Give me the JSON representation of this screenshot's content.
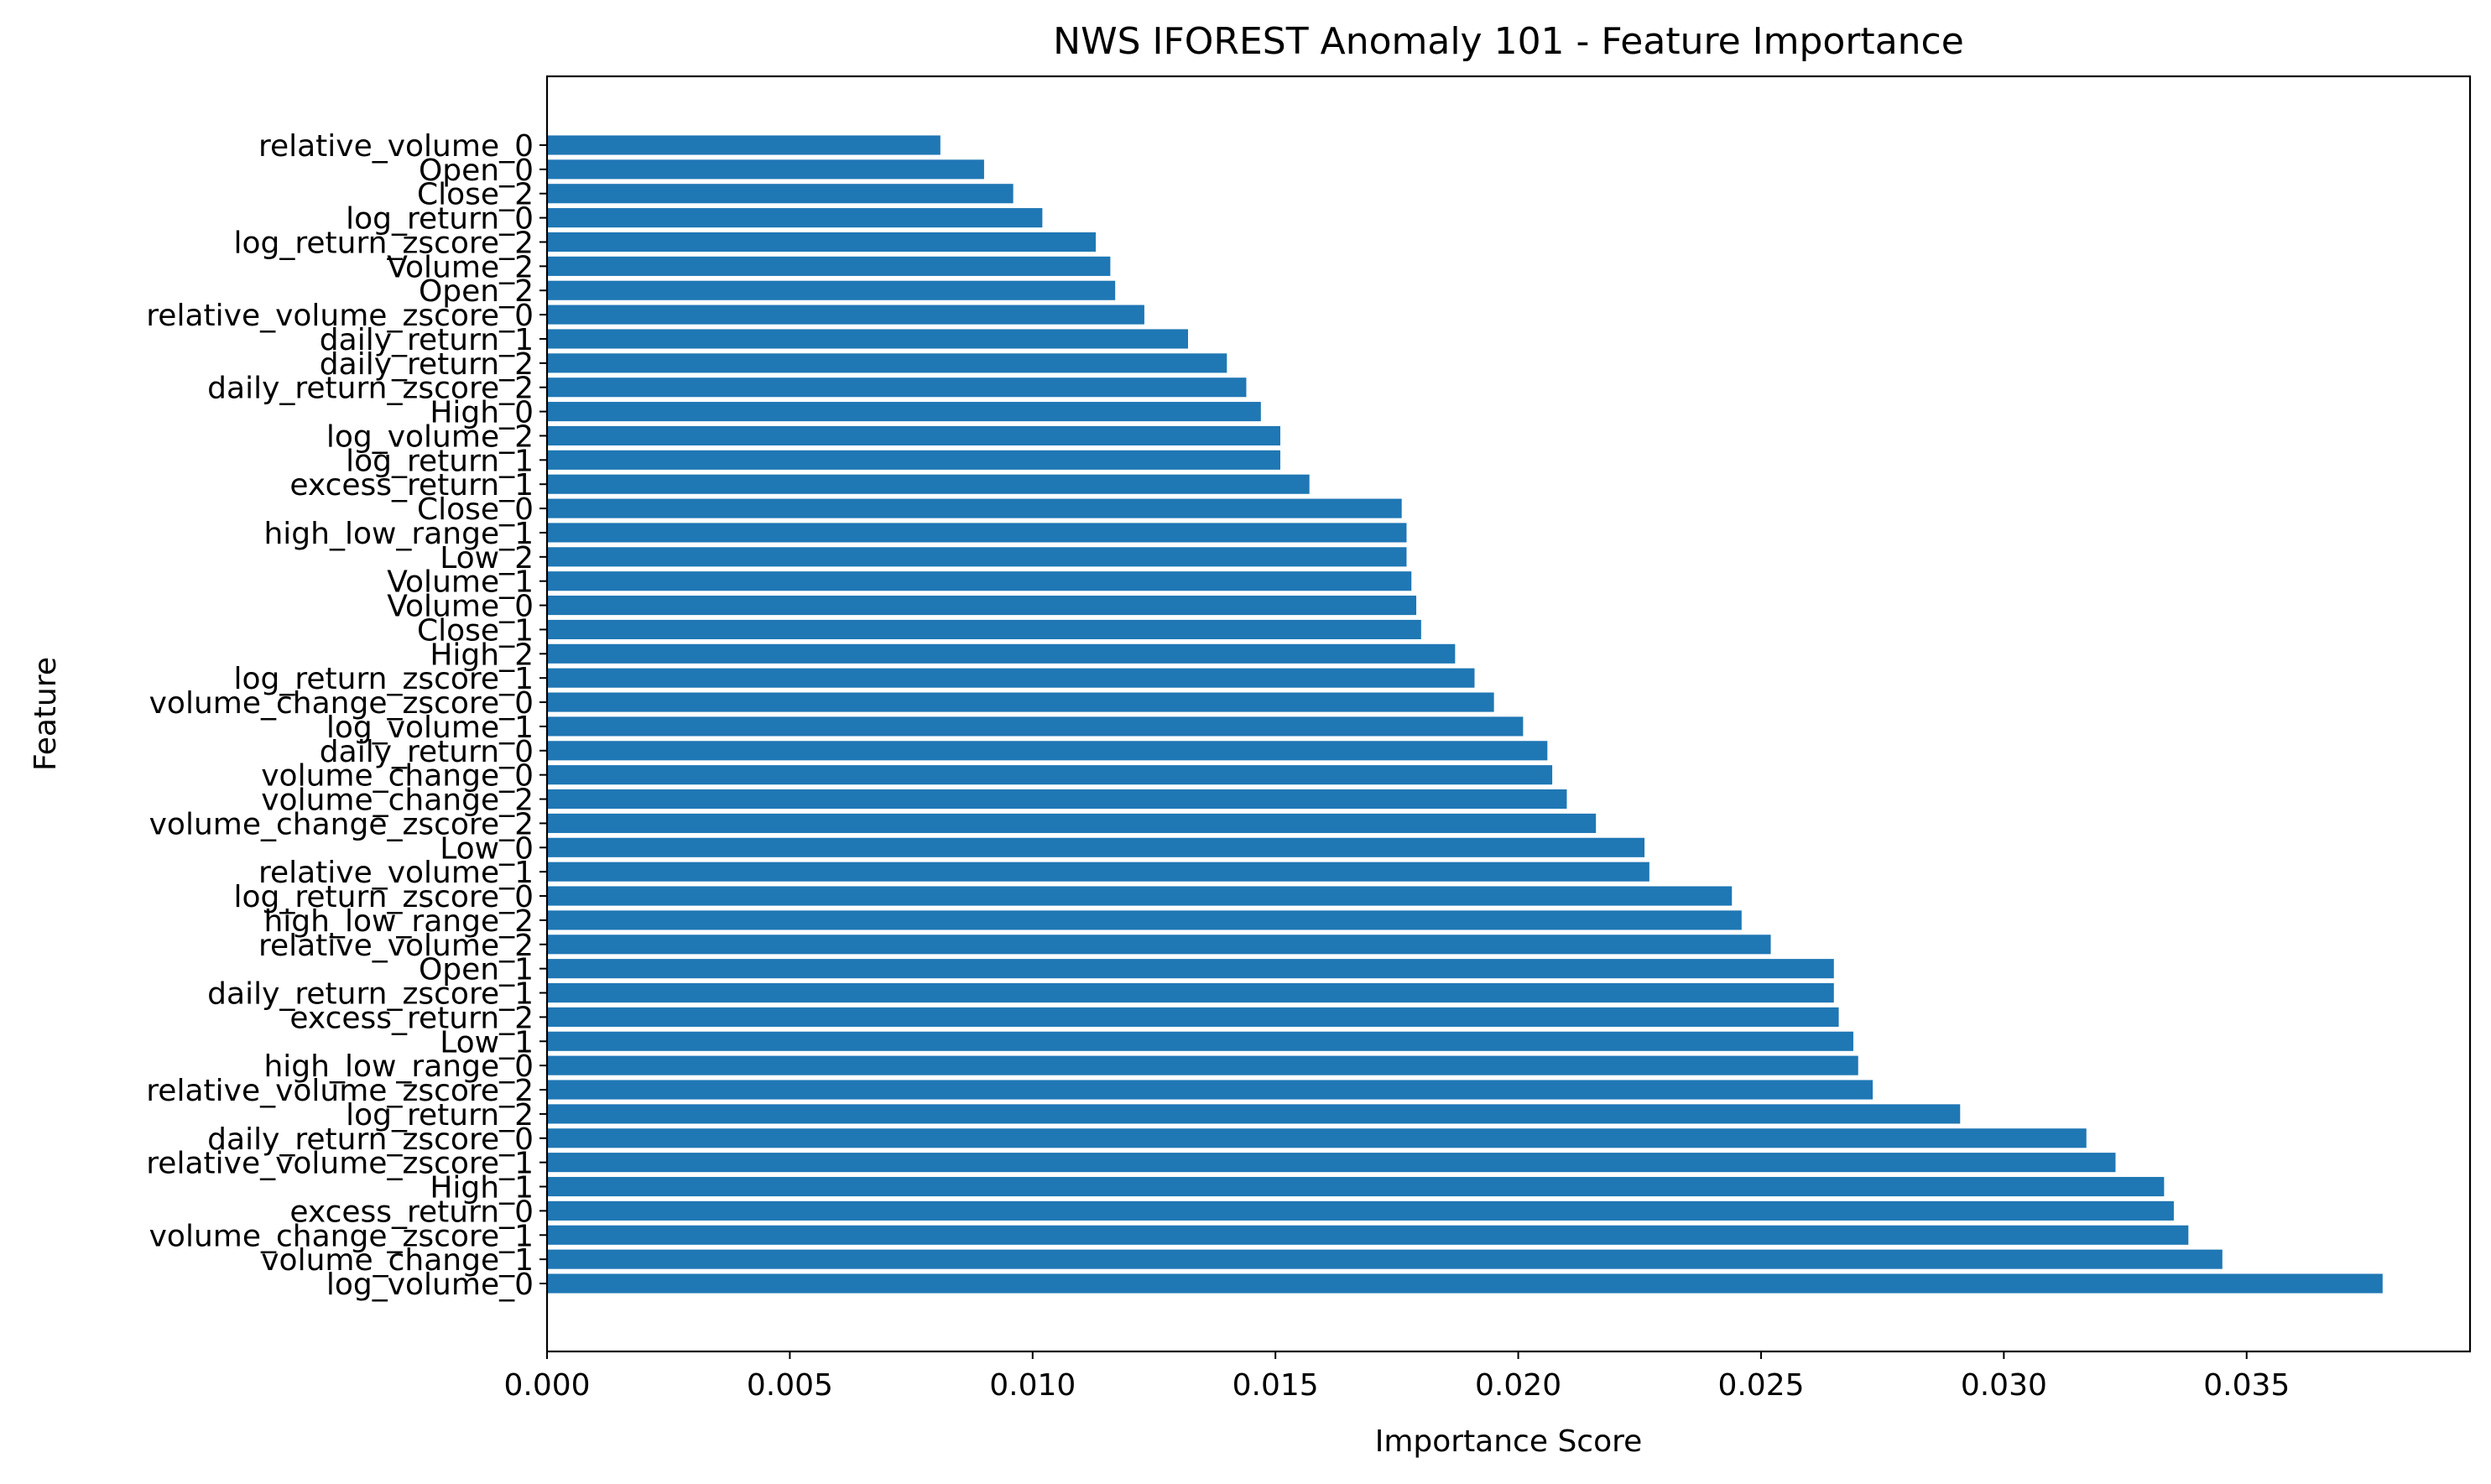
{
  "chart_data": {
    "type": "bar",
    "orientation": "horizontal",
    "title": "NWS IFOREST Anomaly 101 - Feature Importance",
    "xlabel": "Importance Score",
    "ylabel": "Feature",
    "xlim": [
      0,
      0.0396
    ],
    "xticks": [
      0.0,
      0.005,
      0.01,
      0.015,
      0.02,
      0.025,
      0.03,
      0.035
    ],
    "xtick_labels": [
      "0.000",
      "0.005",
      "0.010",
      "0.015",
      "0.020",
      "0.025",
      "0.030",
      "0.035"
    ],
    "grid": false,
    "legend": "none",
    "bar_color": "#1f77b4",
    "categories": [
      "relative_volume_0",
      "Open_0",
      "Close_2",
      "log_return_0",
      "log_return_zscore_2",
      "Volume_2",
      "Open_2",
      "relative_volume_zscore_0",
      "daily_return_1",
      "daily_return_2",
      "daily_return_zscore_2",
      "High_0",
      "log_volume_2",
      "log_return_1",
      "excess_return_1",
      "Close_0",
      "high_low_range_1",
      "Low_2",
      "Volume_1",
      "Volume_0",
      "Close_1",
      "High_2",
      "log_return_zscore_1",
      "volume_change_zscore_0",
      "log_volume_1",
      "daily_return_0",
      "volume_change_0",
      "volume_change_2",
      "volume_change_zscore_2",
      "Low_0",
      "relative_volume_1",
      "log_return_zscore_0",
      "high_low_range_2",
      "relative_volume_2",
      "Open_1",
      "daily_return_zscore_1",
      "excess_return_2",
      "Low_1",
      "high_low_range_0",
      "relative_volume_zscore_2",
      "log_return_2",
      "daily_return_zscore_0",
      "relative_volume_zscore_1",
      "High_1",
      "excess_return_0",
      "volume_change_zscore_1",
      "volume_change_1",
      "log_volume_0"
    ],
    "values": [
      0.0081,
      0.009,
      0.0096,
      0.0102,
      0.0113,
      0.0116,
      0.0117,
      0.0123,
      0.0132,
      0.014,
      0.0144,
      0.0147,
      0.0151,
      0.0151,
      0.0157,
      0.0176,
      0.0177,
      0.0177,
      0.0178,
      0.0179,
      0.018,
      0.0187,
      0.0191,
      0.0195,
      0.0201,
      0.0206,
      0.0207,
      0.021,
      0.0216,
      0.0226,
      0.0227,
      0.0244,
      0.0246,
      0.0252,
      0.0265,
      0.0265,
      0.0266,
      0.0269,
      0.027,
      0.0273,
      0.0291,
      0.0317,
      0.0323,
      0.0333,
      0.0335,
      0.0338,
      0.0345,
      0.0378
    ]
  }
}
